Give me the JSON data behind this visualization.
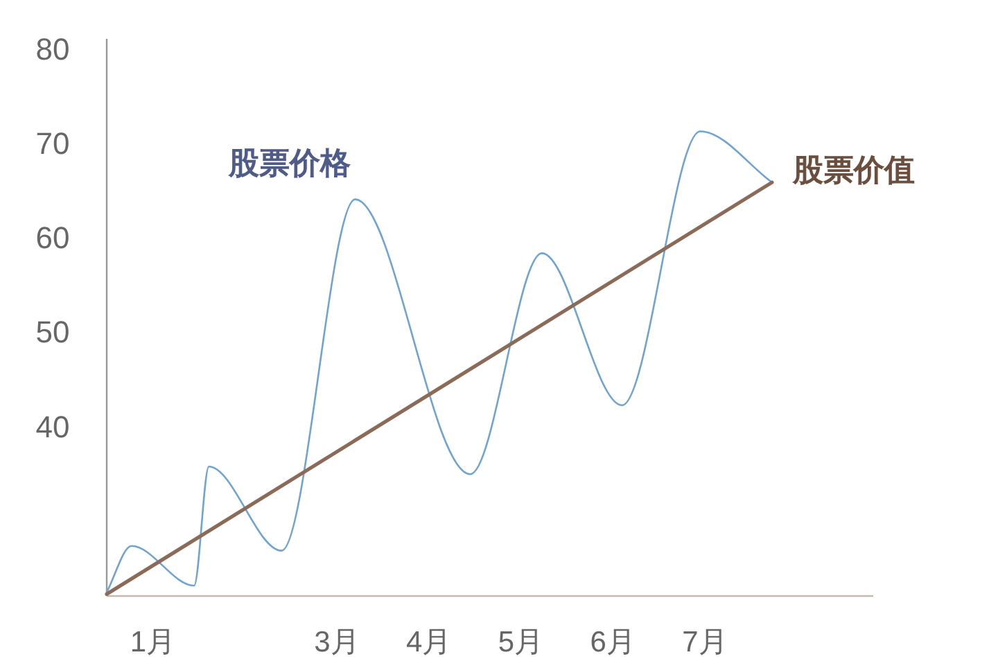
{
  "chart_data": {
    "type": "line",
    "xlim": [
      0.5,
      8.83
    ],
    "ylim": [
      22,
      81
    ],
    "xticks": [
      {
        "value": 1,
        "label": "1月"
      },
      {
        "value": 3,
        "label": "3月"
      },
      {
        "value": 4,
        "label": "4月"
      },
      {
        "value": 5,
        "label": "5月"
      },
      {
        "value": 6,
        "label": "6月"
      },
      {
        "value": 7,
        "label": "7月"
      }
    ],
    "yticks": [
      40,
      50,
      60,
      70,
      80
    ],
    "marker": "none",
    "grid": false,
    "series": [
      {
        "name": "股票价格",
        "color": "#6fa3d2",
        "x": [
          0.5,
          0.77,
          1.45,
          1.61,
          2.4,
          3.2,
          4.45,
          5.23,
          6.1,
          6.95,
          7.73
        ],
        "values": [
          22.4,
          27.3,
          23.1,
          35.7,
          26.8,
          64.0,
          34.9,
          58.3,
          42.2,
          71.2,
          65.8
        ]
      },
      {
        "name": "股票价值",
        "color": "#8b6a58",
        "x": [
          0.5,
          7.73
        ],
        "values": [
          22.2,
          65.8
        ]
      }
    ]
  }
}
